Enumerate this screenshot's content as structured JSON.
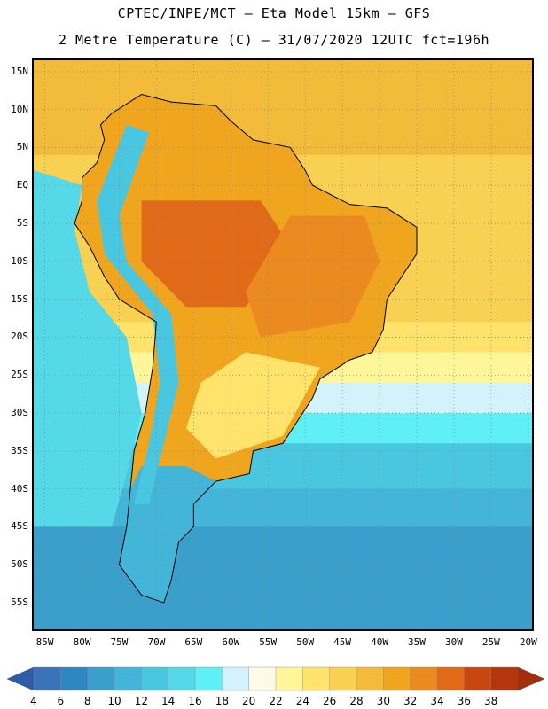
{
  "header": {
    "title_line1": "CPTEC/INPE/MCT –  Eta Model 15km – GFS",
    "title_line2": "2 Metre Temperature (C) – 31/07/2020 12UTC fct=196h"
  },
  "map": {
    "lat_labels": [
      "15N",
      "10N",
      "5N",
      "EQ",
      "5S",
      "10S",
      "15S",
      "20S",
      "25S",
      "30S",
      "35S",
      "40S",
      "45S",
      "50S",
      "55S"
    ],
    "lon_labels": [
      "85W",
      "80W",
      "75W",
      "70W",
      "65W",
      "60W",
      "55W",
      "50W",
      "45W",
      "40W",
      "35W",
      "30W",
      "25W",
      "20W"
    ],
    "lat_range": [
      16.5,
      -58.5
    ],
    "lon_range": [
      -86.5,
      -19.5
    ],
    "ocean_bands": [
      {
        "lat_from": 16.5,
        "lat_to": 4,
        "value": 28
      },
      {
        "lat_from": 4,
        "lat_to": -18,
        "value": 26
      },
      {
        "lat_from": -18,
        "lat_to": -22,
        "value": 24
      },
      {
        "lat_from": -22,
        "lat_to": -26,
        "value": 22
      },
      {
        "lat_from": -26,
        "lat_to": -30,
        "value": 18
      },
      {
        "lat_from": -30,
        "lat_to": -34,
        "value": 16
      },
      {
        "lat_from": -34,
        "lat_to": -40,
        "value": 12
      },
      {
        "lat_from": -40,
        "lat_to": -45,
        "value": 10
      },
      {
        "lat_from": -45,
        "lat_to": -58.5,
        "value": 8
      }
    ],
    "pacific_value": 14,
    "land_values": {
      "north": 30,
      "amazon": 34,
      "central": 32,
      "south": 24,
      "patagonia": 10,
      "andes": 12
    }
  },
  "colorbar": {
    "labels": [
      "4",
      "6",
      "8",
      "10",
      "12",
      "14",
      "16",
      "18",
      "20",
      "22",
      "24",
      "26",
      "28",
      "30",
      "32",
      "34",
      "36",
      "38"
    ],
    "colors": [
      "#3a73b8",
      "#2f86c0",
      "#3b9fcc",
      "#43b5d8",
      "#4ac7e0",
      "#55d9e8",
      "#5ef0f5",
      "#d2f3fb",
      "#fffae8",
      "#fff69a",
      "#ffe36b",
      "#f8d052",
      "#f2bc3a",
      "#f0a51f",
      "#ea8a1f",
      "#e06a17",
      "#c84610",
      "#b4360c"
    ],
    "low_arrow_color": "#2b5da8",
    "high_arrow_color": "#a42e0a"
  }
}
